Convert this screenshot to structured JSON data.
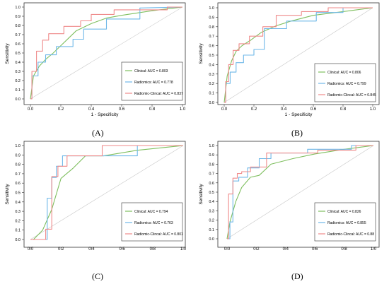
{
  "figure": {
    "panels": [
      {
        "label": "(A)"
      },
      {
        "label": "(B)"
      },
      {
        "label": "(C)"
      },
      {
        "label": "(D)"
      }
    ]
  },
  "chart_data": [
    {
      "type": "line",
      "xlabel": "1 - Specificity",
      "ylabel": "Sensitivity",
      "xlim": [
        0,
        1
      ],
      "ylim": [
        0,
        1
      ],
      "xticks": [
        "0.0",
        "0.2",
        "0.4",
        "0.6",
        "0.8",
        "1.0"
      ],
      "yticks": [
        "0.0",
        "0.1",
        "0.2",
        "0.3",
        "0.4",
        "0.5",
        "0.6",
        "0.7",
        "0.8",
        "0.9",
        "1.0"
      ],
      "legend_position": "bottom-right",
      "diagonal_reference": true,
      "series": [
        {
          "name": "Clinical: AUC = 0.803",
          "color": "#7fbf5f",
          "x": [
            0,
            0.02,
            0.06,
            0.1,
            0.15,
            0.2,
            0.25,
            0.3,
            0.4,
            0.5,
            0.6,
            0.8,
            1.0
          ],
          "y": [
            0,
            0.25,
            0.36,
            0.43,
            0.5,
            0.58,
            0.66,
            0.74,
            0.82,
            0.88,
            0.91,
            0.96,
            1.0
          ]
        },
        {
          "name": "Radiomics: AUC = 0.778",
          "color": "#6fb8e8",
          "x": [
            0,
            0.01,
            0.01,
            0.05,
            0.05,
            0.1,
            0.1,
            0.17,
            0.17,
            0.28,
            0.28,
            0.35,
            0.35,
            0.5,
            0.5,
            0.72,
            0.72,
            1.0
          ],
          "y": [
            0,
            0,
            0.25,
            0.25,
            0.4,
            0.4,
            0.48,
            0.48,
            0.57,
            0.57,
            0.65,
            0.65,
            0.76,
            0.76,
            0.87,
            0.87,
            0.99,
            1.0
          ]
        },
        {
          "name": "Radiomic-Clincal: AUC = 0.837",
          "color": "#ef8a8a",
          "x": [
            0,
            0.01,
            0.01,
            0.04,
            0.04,
            0.08,
            0.08,
            0.12,
            0.12,
            0.22,
            0.22,
            0.33,
            0.33,
            0.4,
            0.4,
            0.55,
            0.55,
            0.9,
            0.9,
            1.0
          ],
          "y": [
            0,
            0,
            0.3,
            0.3,
            0.52,
            0.52,
            0.64,
            0.64,
            0.71,
            0.71,
            0.79,
            0.79,
            0.85,
            0.85,
            0.92,
            0.92,
            0.97,
            0.97,
            1.0,
            1.0
          ]
        }
      ]
    },
    {
      "type": "line",
      "xlabel": "1 - Specificity",
      "ylabel": "Sensitivity",
      "xlim": [
        0,
        1
      ],
      "ylim": [
        0,
        1
      ],
      "xticks": [
        "0.0",
        "0.2",
        "0.4",
        "0.6",
        "0.8",
        "1.0"
      ],
      "yticks": [
        "0.0",
        "0.1",
        "0.2",
        "0.3",
        "0.4",
        "0.5",
        "0.6",
        "0.7",
        "0.8",
        "0.9",
        "1.0"
      ],
      "legend_position": "bottom-right",
      "diagonal_reference": true,
      "series": [
        {
          "name": "Clinical: AUC = 0.806",
          "color": "#7fbf5f",
          "x": [
            0,
            0.02,
            0.05,
            0.08,
            0.12,
            0.18,
            0.25,
            0.35,
            0.45,
            0.6,
            0.8,
            1.0
          ],
          "y": [
            0,
            0.28,
            0.44,
            0.54,
            0.6,
            0.66,
            0.74,
            0.81,
            0.86,
            0.92,
            0.96,
            1.0
          ]
        },
        {
          "name": "Radiomics: AUC = 0.799",
          "color": "#6fb8e8",
          "x": [
            0,
            0.01,
            0.01,
            0.04,
            0.04,
            0.08,
            0.08,
            0.13,
            0.13,
            0.2,
            0.2,
            0.27,
            0.27,
            0.42,
            0.42,
            0.62,
            0.62,
            0.8,
            0.8,
            1.0
          ],
          "y": [
            0,
            0,
            0.2,
            0.2,
            0.32,
            0.32,
            0.42,
            0.42,
            0.5,
            0.5,
            0.56,
            0.56,
            0.78,
            0.78,
            0.86,
            0.86,
            0.95,
            0.95,
            1.0,
            1.0
          ]
        },
        {
          "name": "Radiomic-Clincal: AUC = 0.845",
          "color": "#ef8a8a",
          "x": [
            0,
            0.01,
            0.01,
            0.03,
            0.03,
            0.06,
            0.06,
            0.1,
            0.1,
            0.17,
            0.17,
            0.26,
            0.26,
            0.35,
            0.35,
            0.52,
            0.52,
            0.7,
            0.7,
            1.0
          ],
          "y": [
            0,
            0,
            0.22,
            0.22,
            0.4,
            0.4,
            0.55,
            0.55,
            0.62,
            0.62,
            0.7,
            0.7,
            0.8,
            0.8,
            0.92,
            0.92,
            0.96,
            0.96,
            1.0,
            1.0
          ]
        }
      ]
    },
    {
      "type": "line",
      "xlabel": "",
      "ylabel": "Sensitivity",
      "xlim": [
        0,
        1
      ],
      "ylim": [
        0,
        1
      ],
      "xticks": [
        "0.0",
        "0.2",
        "0.4",
        "0.6",
        "0.8",
        "1.0"
      ],
      "yticks": [
        "0.0",
        "0.1",
        "0.2",
        "0.3",
        "0.4",
        "0.5",
        "0.6",
        "0.7",
        "0.8",
        "0.9",
        "1.0"
      ],
      "legend_position": "bottom-right",
      "diagonal_reference": true,
      "series": [
        {
          "name": "Clinical: AUC = 0.794",
          "color": "#7fbf5f",
          "x": [
            0.02,
            0.08,
            0.14,
            0.2,
            0.28,
            0.36,
            0.48,
            0.7,
            1.0
          ],
          "y": [
            0,
            0.1,
            0.32,
            0.65,
            0.76,
            0.89,
            0.89,
            0.95,
            1.0
          ]
        },
        {
          "name": "Radiomics: AUC = 0.763",
          "color": "#6fb8e8",
          "x": [
            0,
            0.11,
            0.11,
            0.14,
            0.14,
            0.17,
            0.17,
            0.21,
            0.21,
            0.35,
            0.35,
            0.7,
            0.7,
            1.0
          ],
          "y": [
            0,
            0,
            0.44,
            0.44,
            0.66,
            0.66,
            0.78,
            0.78,
            0.89,
            0.89,
            0.89,
            0.89,
            1.0,
            1.0
          ]
        },
        {
          "name": "Radiomic-Clincal: AUC = 0.801",
          "color": "#ef8a8a",
          "x": [
            0,
            0.1,
            0.1,
            0.14,
            0.14,
            0.18,
            0.18,
            0.24,
            0.24,
            0.34,
            0.34,
            0.47,
            0.47,
            1.0
          ],
          "y": [
            0,
            0,
            0.11,
            0.11,
            0.67,
            0.67,
            0.78,
            0.78,
            0.89,
            0.89,
            0.89,
            0.89,
            1.0,
            1.0
          ]
        }
      ]
    },
    {
      "type": "line",
      "xlabel": "",
      "ylabel": "Sensitivity",
      "xlim": [
        0,
        1
      ],
      "ylim": [
        0,
        1
      ],
      "xticks": [
        "0.0",
        "0.2",
        "0.4",
        "0.6",
        "0.8",
        "1.0"
      ],
      "yticks": [
        "0.0",
        "0.1",
        "0.2",
        "0.3",
        "0.4",
        "0.5",
        "0.6",
        "0.7",
        "0.8",
        "0.9",
        "1.0"
      ],
      "legend_position": "bottom-right",
      "diagonal_reference": true,
      "series": [
        {
          "name": "Clinical: AUC = 0.826",
          "color": "#7fbf5f",
          "x": [
            0,
            0.02,
            0.06,
            0.1,
            0.16,
            0.22,
            0.3,
            0.45,
            0.6,
            0.8,
            1.0
          ],
          "y": [
            0,
            0.18,
            0.4,
            0.55,
            0.66,
            0.68,
            0.8,
            0.86,
            0.91,
            0.96,
            1.0
          ]
        },
        {
          "name": "Radiomics: AUC = 0.855",
          "color": "#6fb8e8",
          "x": [
            0,
            0.02,
            0.02,
            0.04,
            0.04,
            0.08,
            0.08,
            0.14,
            0.14,
            0.22,
            0.22,
            0.3,
            0.3,
            0.55,
            0.55,
            0.85,
            0.85,
            1.0
          ],
          "y": [
            0,
            0,
            0.18,
            0.18,
            0.62,
            0.62,
            0.66,
            0.66,
            0.76,
            0.76,
            0.86,
            0.86,
            0.92,
            0.92,
            0.96,
            0.96,
            1.0,
            1.0
          ]
        },
        {
          "name": "Radiomic-Clincal: AUC = 0.88",
          "color": "#ef8a8a",
          "x": [
            0,
            0.01,
            0.01,
            0.04,
            0.04,
            0.07,
            0.07,
            0.1,
            0.1,
            0.16,
            0.16,
            0.27,
            0.27,
            0.62,
            0.62,
            0.88,
            0.88,
            1.0
          ],
          "y": [
            0,
            0,
            0.48,
            0.48,
            0.65,
            0.65,
            0.7,
            0.7,
            0.72,
            0.72,
            0.77,
            0.77,
            0.92,
            0.92,
            0.95,
            0.95,
            1.0,
            1.0
          ]
        }
      ]
    }
  ]
}
